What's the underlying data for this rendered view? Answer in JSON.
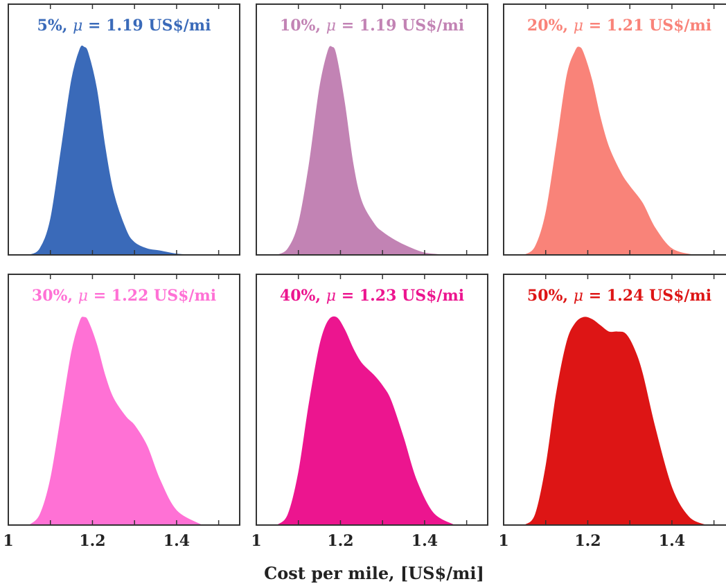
{
  "chart_data": [
    {
      "type": "area",
      "title": "5%, μ = 1.19 US$/mi",
      "title_parts": {
        "pct": "5%, ",
        "mu": "μ",
        "rest": " = 1.19 US$/mi"
      },
      "color": "#3a6ab9",
      "x": [
        1.05,
        1.075,
        1.1,
        1.125,
        1.15,
        1.17,
        1.18,
        1.19,
        1.21,
        1.23,
        1.25,
        1.28,
        1.3,
        1.33,
        1.36,
        1.4,
        1.44
      ],
      "y": [
        0.0,
        0.03,
        0.17,
        0.5,
        0.84,
        0.99,
        1.0,
        0.97,
        0.8,
        0.52,
        0.3,
        0.12,
        0.06,
        0.03,
        0.02,
        0.005,
        0.0
      ]
    },
    {
      "type": "area",
      "title": "10%, μ = 1.19 US$/mi",
      "title_parts": {
        "pct": "10%, ",
        "mu": "μ",
        "rest": " = 1.19 US$/mi"
      },
      "color": "#c283b4",
      "x": [
        1.05,
        1.075,
        1.1,
        1.125,
        1.15,
        1.17,
        1.18,
        1.19,
        1.21,
        1.23,
        1.25,
        1.28,
        1.3,
        1.33,
        1.36,
        1.4,
        1.45
      ],
      "y": [
        0.0,
        0.03,
        0.15,
        0.43,
        0.8,
        0.98,
        1.0,
        0.96,
        0.73,
        0.44,
        0.26,
        0.15,
        0.11,
        0.07,
        0.04,
        0.01,
        0.0
      ]
    },
    {
      "type": "area",
      "title": "20%, μ = 1.21 US$/mi",
      "title_parts": {
        "pct": "20%, ",
        "mu": "μ",
        "rest": " = 1.21 US$/mi"
      },
      "color": "#f98379",
      "x": [
        1.05,
        1.075,
        1.1,
        1.125,
        1.15,
        1.17,
        1.18,
        1.19,
        1.21,
        1.23,
        1.25,
        1.28,
        1.3,
        1.33,
        1.36,
        1.4,
        1.45
      ],
      "y": [
        0.0,
        0.04,
        0.2,
        0.52,
        0.86,
        0.98,
        1.0,
        0.97,
        0.84,
        0.66,
        0.52,
        0.39,
        0.33,
        0.25,
        0.13,
        0.03,
        0.0
      ]
    },
    {
      "type": "area",
      "title": "30%, μ = 1.22 US$/mi",
      "title_parts": {
        "pct": "30%, ",
        "mu": "μ",
        "rest": " = 1.22 US$/mi"
      },
      "color": "#ff71d5",
      "x": [
        1.05,
        1.075,
        1.1,
        1.125,
        1.15,
        1.17,
        1.18,
        1.19,
        1.21,
        1.23,
        1.25,
        1.28,
        1.3,
        1.33,
        1.36,
        1.4,
        1.46
      ],
      "y": [
        0.0,
        0.05,
        0.22,
        0.52,
        0.83,
        0.98,
        1.0,
        0.98,
        0.87,
        0.72,
        0.61,
        0.52,
        0.48,
        0.38,
        0.22,
        0.07,
        0.0
      ]
    },
    {
      "type": "area",
      "title": "40%, μ = 1.23 US$/mi",
      "title_parts": {
        "pct": "40%, ",
        "mu": "μ",
        "rest": " = 1.23 US$/mi"
      },
      "color": "#ec158f",
      "x": [
        1.05,
        1.075,
        1.1,
        1.125,
        1.15,
        1.17,
        1.19,
        1.21,
        1.23,
        1.25,
        1.28,
        1.3,
        1.32,
        1.35,
        1.38,
        1.42,
        1.47
      ],
      "y": [
        0.0,
        0.05,
        0.25,
        0.58,
        0.86,
        0.98,
        1.0,
        0.94,
        0.85,
        0.78,
        0.72,
        0.67,
        0.6,
        0.42,
        0.22,
        0.06,
        0.0
      ]
    },
    {
      "type": "area",
      "title": "50%, μ = 1.24 US$/mi",
      "title_parts": {
        "pct": "50%, ",
        "mu": "μ",
        "rest": " = 1.24 US$/mi"
      },
      "color": "#dd1515",
      "x": [
        1.05,
        1.075,
        1.1,
        1.125,
        1.15,
        1.17,
        1.19,
        1.21,
        1.23,
        1.25,
        1.27,
        1.29,
        1.31,
        1.33,
        1.36,
        1.4,
        1.44,
        1.48
      ],
      "y": [
        0.0,
        0.05,
        0.28,
        0.63,
        0.88,
        0.97,
        1.0,
        0.99,
        0.96,
        0.93,
        0.93,
        0.92,
        0.85,
        0.73,
        0.47,
        0.18,
        0.04,
        0.0
      ]
    }
  ],
  "axes": {
    "xlim": [
      1.0,
      1.55
    ],
    "xticks": [
      1.0,
      1.1,
      1.2,
      1.3,
      1.4,
      1.5
    ],
    "xticklabels_values": [
      1.0,
      1.2,
      1.4
    ],
    "xticklabels": [
      "1",
      "1.2",
      "1.4"
    ],
    "xlabel": "Cost per mile, [US$/mi]",
    "ylim": [
      0,
      1.0
    ],
    "grid": false
  }
}
